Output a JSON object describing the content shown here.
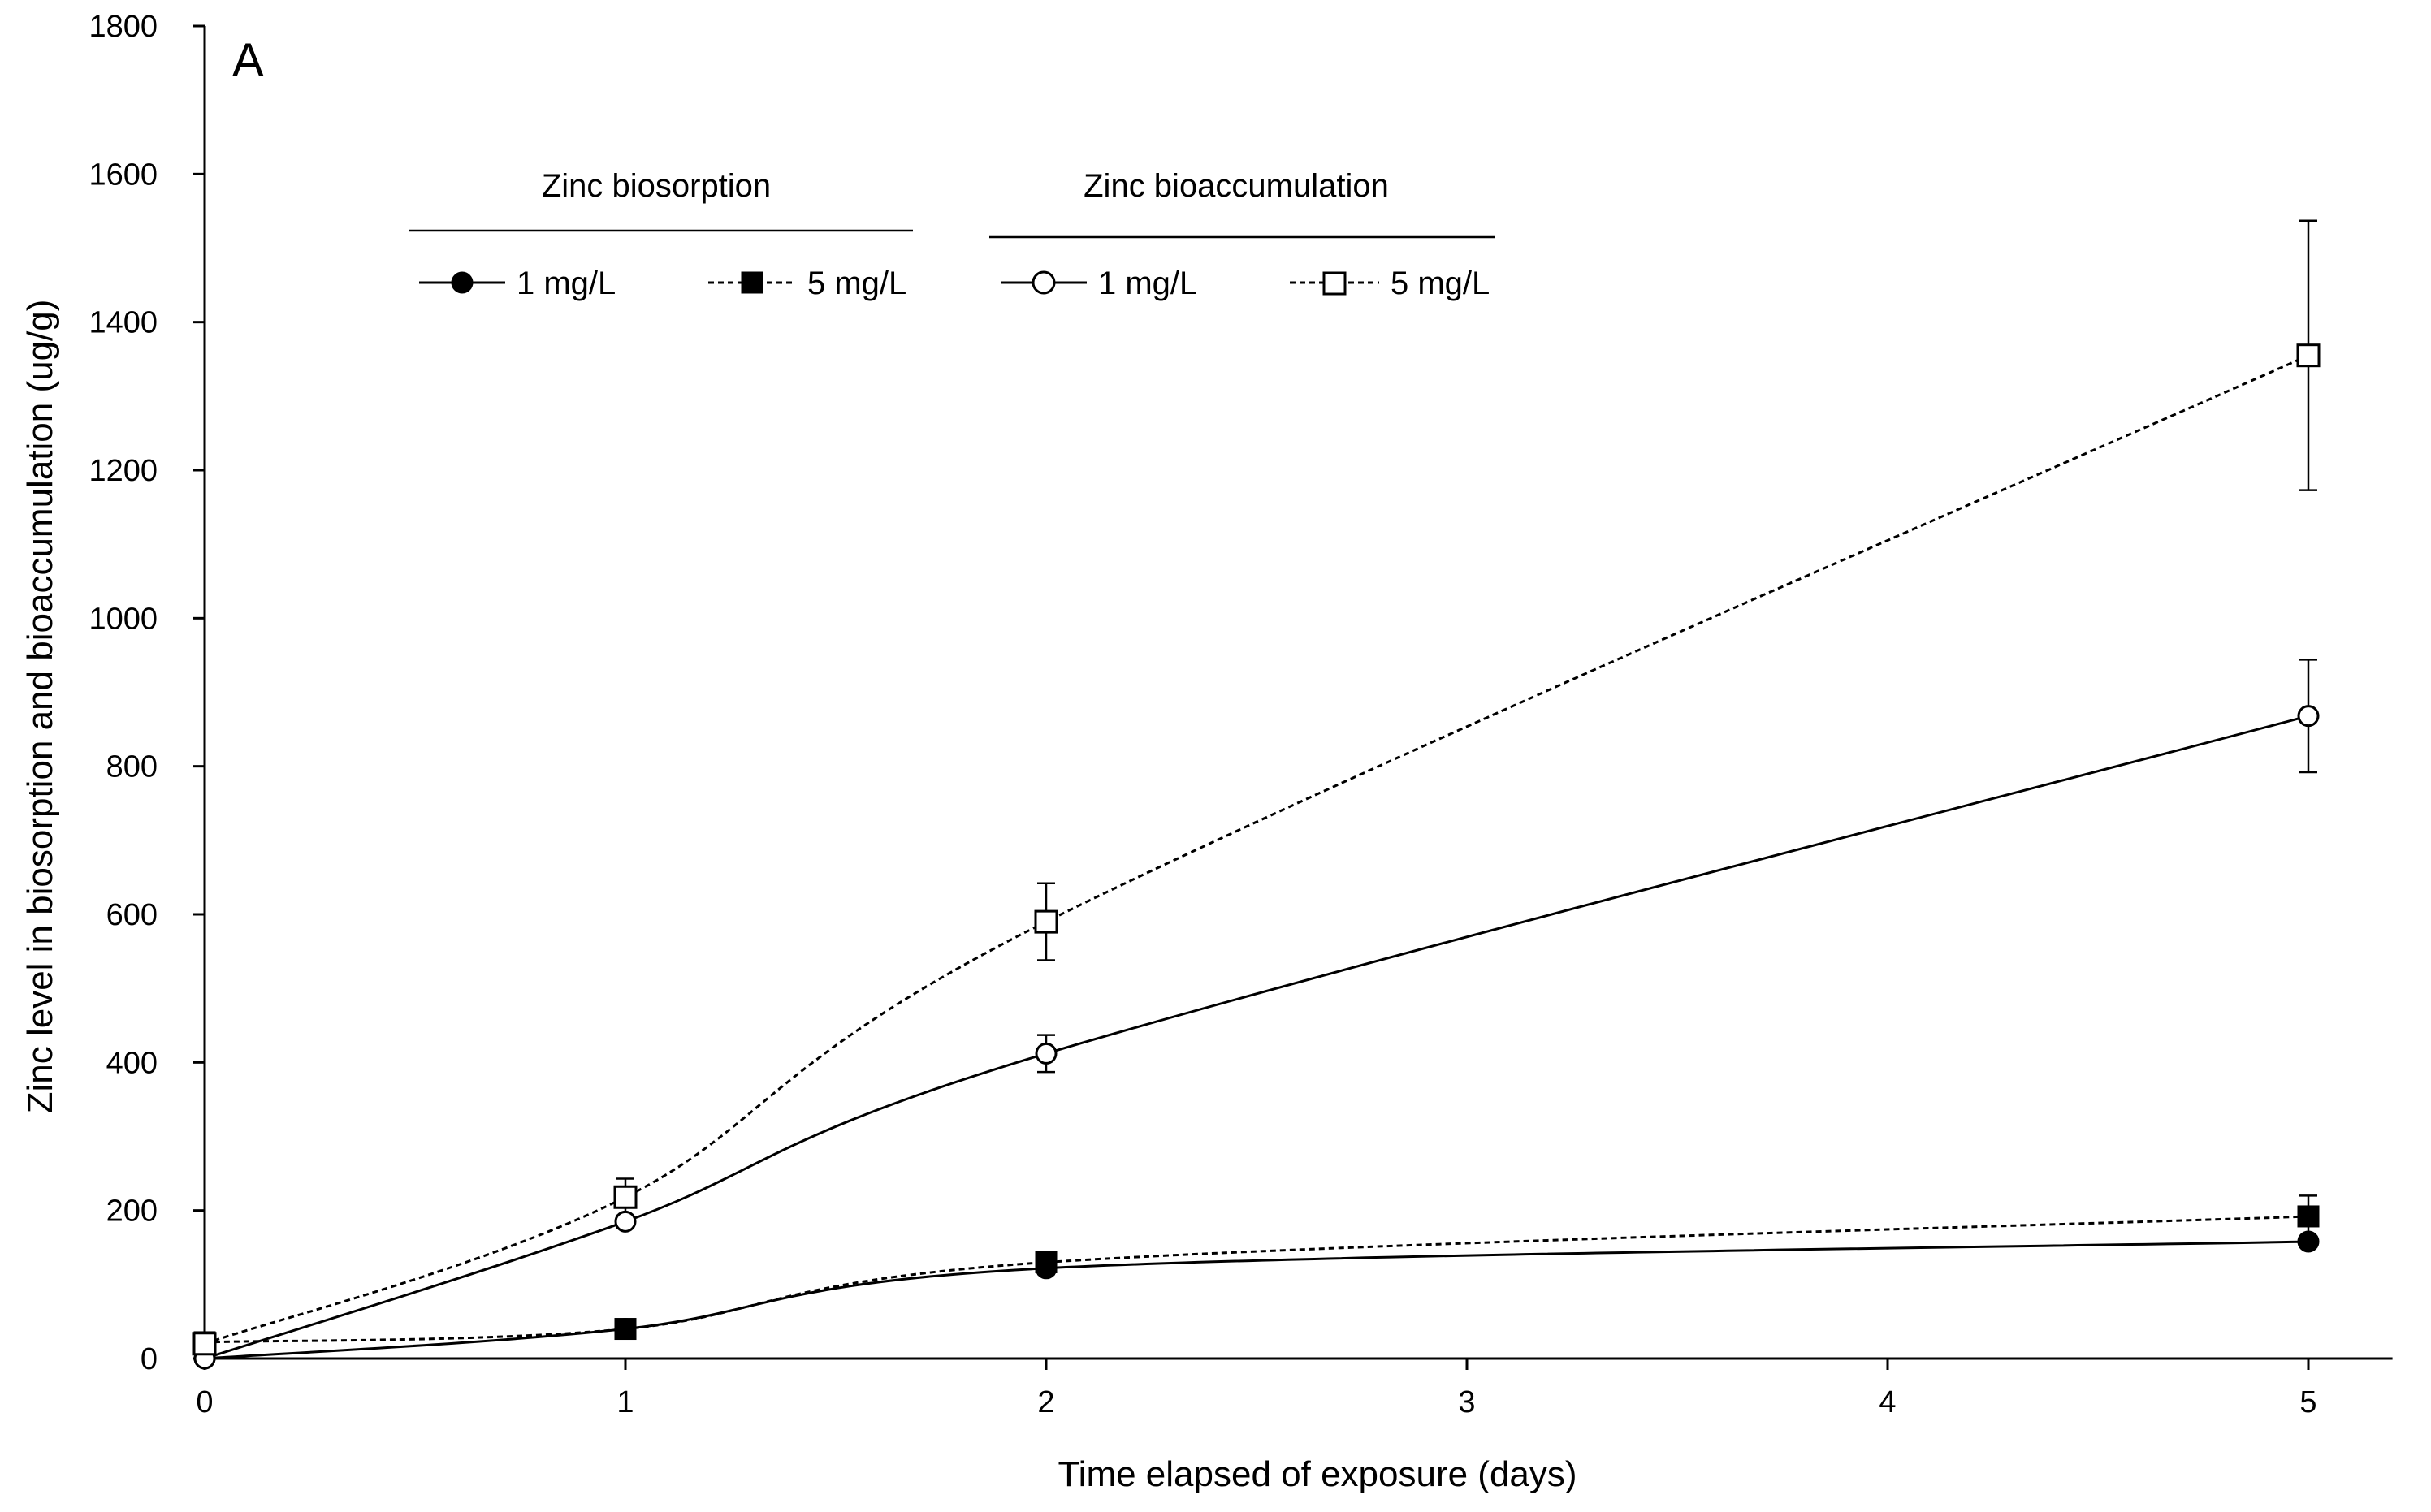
{
  "chart_data": {
    "type": "line",
    "panel_label": "A",
    "xlabel": "Time elapsed of exposure (days)",
    "ylabel": "Zinc level in biosorption and bioaccumulation (ug/g)",
    "xlim": [
      0,
      5.2
    ],
    "ylim": [
      0,
      1800
    ],
    "x_ticks": [
      0,
      1,
      2,
      3,
      4,
      5
    ],
    "y_ticks": [
      0,
      200,
      400,
      600,
      800,
      1000,
      1200,
      1400,
      1600,
      1800
    ],
    "legend_groups": [
      {
        "title": "Zinc biosorption",
        "entries": [
          "1 mg/L",
          "5 mg/L"
        ]
      },
      {
        "title": "Zinc bioaccumulation",
        "entries": [
          "1 mg/L",
          "5 mg/L"
        ]
      }
    ],
    "series": [
      {
        "name": "Zinc biosorption 1 mg/L",
        "label": "1 mg/L",
        "group": "Zinc biosorption",
        "marker": "circle",
        "fill": "filled",
        "line": "solid",
        "x": [
          0,
          1,
          2,
          5
        ],
        "y": [
          0,
          40,
          122,
          158
        ],
        "err": [
          0,
          0,
          8,
          6
        ]
      },
      {
        "name": "Zinc biosorption 5 mg/L",
        "label": "5 mg/L",
        "group": "Zinc biosorption",
        "marker": "square",
        "fill": "filled",
        "line": "dashed",
        "x": [
          0,
          1,
          2,
          5
        ],
        "y": [
          22,
          40,
          130,
          192
        ],
        "err": [
          0,
          5,
          14,
          28
        ]
      },
      {
        "name": "Zinc bioaccumulation 1 mg/L",
        "label": "1 mg/L",
        "group": "Zinc bioaccumulation",
        "marker": "circle",
        "fill": "open",
        "line": "solid",
        "x": [
          0,
          1,
          2,
          5
        ],
        "y": [
          0,
          185,
          412,
          868
        ],
        "err": [
          0,
          8,
          25,
          76
        ]
      },
      {
        "name": "Zinc bioaccumulation 5 mg/L",
        "label": "5 mg/L",
        "group": "Zinc bioaccumulation",
        "marker": "square",
        "fill": "open",
        "line": "dashed",
        "x": [
          0,
          1,
          2,
          5
        ],
        "y": [
          20,
          218,
          590,
          1355
        ],
        "err": [
          0,
          25,
          52,
          182
        ]
      }
    ],
    "colors": {
      "line": "#000000",
      "open_fill": "#ffffff"
    }
  }
}
